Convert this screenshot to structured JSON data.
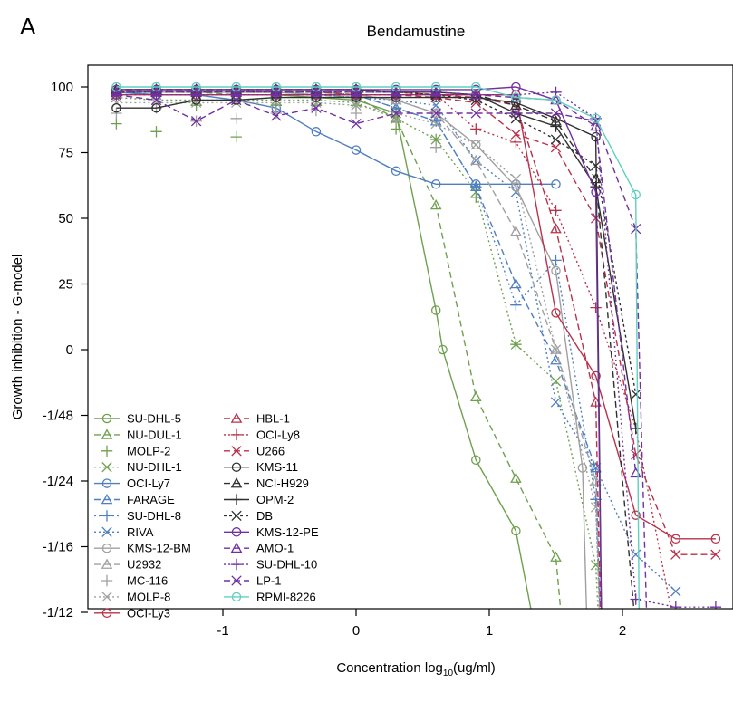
{
  "panel_label": "A",
  "chart_data": {
    "type": "line",
    "title": "Bendamustine",
    "xlabel_main": "Concentration log",
    "xlabel_sub": "10",
    "xlabel_unit": "(ug/ml)",
    "ylabel": "Growth inhibition - G-model",
    "xlim": [
      -2.0,
      2.8
    ],
    "ylim": [
      -1.3,
      1.12
    ],
    "x_ticks": [
      -1,
      0,
      1,
      2
    ],
    "x_tick_labels": [
      "-1",
      "0",
      "1",
      "2"
    ],
    "y_ticks": [
      1.0,
      0.75,
      0.5,
      0.25,
      0,
      -0.25,
      -0.5,
      -0.75,
      -1.0,
      -1.25
    ],
    "y_tick_labels": [
      "100",
      "75",
      "50",
      "25",
      "0",
      "-1/48",
      "-1/24",
      "-1/16",
      "-1/12"
    ],
    "y_tick_values": [
      1.0,
      0.75,
      0.5,
      0.25,
      0,
      -0.25,
      -0.5,
      -0.75,
      -1.0
    ],
    "grid": false,
    "legend_position": "bottom-left",
    "series": [
      {
        "name": "SU-DHL-5",
        "color": "#6fa04f",
        "dash": "",
        "marker": "circle",
        "x": [
          -1.8,
          -1.5,
          -1.2,
          -0.9,
          -0.6,
          -0.3,
          0.0,
          0.3,
          0.6,
          0.65,
          0.9,
          1.2,
          1.45
        ],
        "y": [
          0.98,
          0.97,
          0.97,
          0.97,
          0.97,
          0.96,
          0.95,
          0.9,
          0.15,
          0.0,
          -0.42,
          -0.69,
          -1.35
        ]
      },
      {
        "name": "NU-DUL-1",
        "color": "#6fa04f",
        "dash": "7,4",
        "marker": "triangle",
        "x": [
          -1.8,
          -1.5,
          -1.2,
          -0.9,
          -0.6,
          -0.3,
          0.0,
          0.3,
          0.6,
          0.9,
          1.2,
          1.5,
          1.6
        ],
        "y": [
          0.99,
          0.98,
          0.98,
          0.97,
          0.97,
          0.97,
          0.96,
          0.88,
          0.55,
          -0.18,
          -0.49,
          -0.79,
          -1.35
        ]
      },
      {
        "name": "MOLP-2",
        "color": "#6fa04f",
        "dash": "",
        "marker": "plus",
        "nolines": true,
        "x": [
          -1.8,
          -1.5,
          -1.2,
          -0.9,
          -0.6,
          -0.3,
          0.0,
          0.3,
          0.6,
          0.9,
          1.2
        ],
        "y": [
          0.86,
          0.83,
          0.93,
          0.81,
          0.93,
          0.93,
          0.93,
          0.84,
          0.8,
          0.58,
          0.02
        ]
      },
      {
        "name": "NU-DHL-1",
        "color": "#6fa04f",
        "dash": "2,3",
        "marker": "x",
        "x": [
          -1.8,
          -1.5,
          -1.2,
          -0.9,
          -0.6,
          -0.3,
          0.0,
          0.3,
          0.6,
          0.9,
          1.2,
          1.5,
          1.8,
          1.85
        ],
        "y": [
          0.96,
          0.95,
          0.95,
          0.95,
          0.95,
          0.95,
          0.94,
          0.88,
          0.8,
          0.6,
          0.02,
          -0.12,
          -0.82,
          -1.35
        ]
      },
      {
        "name": "OCI-Ly7",
        "color": "#4f7fbf",
        "dash": "",
        "marker": "circle",
        "x": [
          -1.8,
          -1.5,
          -1.2,
          -0.9,
          -0.6,
          -0.3,
          0.0,
          0.3,
          0.6,
          0.9,
          1.2,
          1.5
        ],
        "y": [
          0.98,
          0.97,
          0.97,
          0.95,
          0.92,
          0.83,
          0.76,
          0.68,
          0.63,
          0.63,
          0.63,
          0.63
        ]
      },
      {
        "name": "FARAGE",
        "color": "#4f7fbf",
        "dash": "7,4",
        "marker": "triangle",
        "x": [
          -1.8,
          -1.5,
          -1.2,
          -0.9,
          -0.6,
          -0.3,
          0.0,
          0.3,
          0.6,
          0.9,
          1.2,
          1.5,
          1.8,
          1.85
        ],
        "y": [
          0.99,
          0.98,
          0.98,
          0.98,
          0.98,
          0.97,
          0.97,
          0.92,
          0.87,
          0.62,
          0.25,
          -0.04,
          -0.45,
          -1.35
        ]
      },
      {
        "name": "SU-DHL-8",
        "color": "#4f7fbf",
        "dash": "2,3",
        "marker": "plus",
        "x": [
          -1.8,
          -1.5,
          -1.2,
          -0.9,
          -0.6,
          -0.3,
          0.0,
          0.3,
          0.6,
          0.9,
          1.2,
          1.5,
          1.8,
          1.85
        ],
        "y": [
          0.99,
          0.99,
          0.99,
          0.99,
          0.98,
          0.98,
          0.97,
          0.92,
          0.87,
          0.62,
          0.17,
          0.34,
          -0.57,
          -1.35
        ]
      },
      {
        "name": "RIVA",
        "color": "#4f7fbf",
        "dash": "2,3",
        "marker": "x",
        "x": [
          -1.8,
          -1.5,
          -1.2,
          -0.9,
          -0.6,
          -0.3,
          0.0,
          0.3,
          0.6,
          0.9,
          1.2,
          1.5,
          1.8,
          2.1,
          2.4
        ],
        "y": [
          0.98,
          0.97,
          0.97,
          0.97,
          0.97,
          0.97,
          0.96,
          0.95,
          0.93,
          0.72,
          0.6,
          -0.2,
          -0.45,
          -0.78,
          -0.92
        ]
      },
      {
        "name": "KMS-12-BM",
        "color": "#a0a0a0",
        "dash": "",
        "marker": "circle",
        "x": [
          -1.8,
          -1.5,
          -1.2,
          -0.9,
          -0.6,
          -0.3,
          0.0,
          0.3,
          0.6,
          0.9,
          1.2,
          1.5,
          1.7,
          1.75
        ],
        "y": [
          0.98,
          0.98,
          0.98,
          0.98,
          0.98,
          0.97,
          0.97,
          0.95,
          0.9,
          0.78,
          0.62,
          0.3,
          -0.45,
          -1.35
        ]
      },
      {
        "name": "U2932",
        "color": "#a0a0a0",
        "dash": "7,4",
        "marker": "triangle",
        "x": [
          -1.8,
          -1.5,
          -1.2,
          -0.9,
          -0.6,
          -0.3,
          0.0,
          0.3,
          0.6,
          0.9,
          1.2,
          1.5,
          1.8,
          1.85
        ],
        "y": [
          0.99,
          0.99,
          0.99,
          0.98,
          0.98,
          0.98,
          0.97,
          0.95,
          0.9,
          0.72,
          0.45,
          0.0,
          -0.5,
          -1.35
        ]
      },
      {
        "name": "MC-116",
        "color": "#a0a0a0",
        "dash": "",
        "marker": "plus",
        "nolines": true,
        "x": [
          -1.8,
          -1.5,
          -1.2,
          -0.9,
          -0.6,
          -0.3,
          0.0,
          0.3,
          0.6
        ],
        "y": [
          0.9,
          0.92,
          0.87,
          0.88,
          0.9,
          0.91,
          0.9,
          0.87,
          0.77
        ]
      },
      {
        "name": "MOLP-8",
        "color": "#a0a0a0",
        "dash": "2,3",
        "marker": "x",
        "x": [
          -1.8,
          -1.5,
          -1.2,
          -0.9,
          -0.6,
          -0.3,
          0.0,
          0.3,
          0.6,
          0.9,
          1.2,
          1.5,
          1.8,
          1.85
        ],
        "y": [
          0.94,
          0.94,
          0.94,
          0.94,
          0.94,
          0.94,
          0.93,
          0.9,
          0.86,
          0.78,
          0.65,
          0.0,
          -0.6,
          -1.35
        ]
      },
      {
        "name": "OCI-Ly3",
        "color": "#b8324b",
        "dash": "",
        "marker": "circle",
        "x": [
          -1.8,
          -1.5,
          -1.2,
          -0.9,
          -0.6,
          -0.3,
          0.0,
          0.3,
          0.6,
          0.9,
          1.2,
          1.5,
          1.8,
          2.1,
          2.4,
          2.7
        ],
        "y": [
          0.97,
          0.97,
          0.97,
          0.97,
          0.97,
          0.97,
          0.97,
          0.97,
          0.97,
          0.97,
          0.97,
          0.14,
          -0.1,
          -0.63,
          -0.72,
          -0.72
        ]
      },
      {
        "name": "HBL-1",
        "color": "#b8324b",
        "dash": "7,4",
        "marker": "triangle",
        "x": [
          -1.8,
          -1.5,
          -1.2,
          -0.9,
          -0.6,
          -0.3,
          0.0,
          0.3,
          0.6,
          0.9,
          1.2,
          1.5,
          1.8,
          1.85
        ],
        "y": [
          0.99,
          0.99,
          0.99,
          0.99,
          0.99,
          0.99,
          0.99,
          0.98,
          0.97,
          0.96,
          0.93,
          0.46,
          -0.2,
          -1.35
        ]
      },
      {
        "name": "OCI-Ly8",
        "color": "#b8324b",
        "dash": "2,3",
        "marker": "plus",
        "x": [
          -1.8,
          -1.5,
          -1.2,
          -0.9,
          -0.6,
          -0.3,
          0.0,
          0.3,
          0.6,
          0.9,
          1.2,
          1.5,
          1.8,
          2.1,
          2.4
        ],
        "y": [
          0.99,
          0.99,
          0.99,
          0.99,
          0.99,
          0.99,
          0.99,
          0.98,
          0.97,
          0.84,
          0.79,
          0.53,
          0.16,
          -0.3,
          -1.08
        ]
      },
      {
        "name": "U266",
        "color": "#b8324b",
        "dash": "7,4",
        "marker": "x",
        "x": [
          -1.8,
          -1.5,
          -1.2,
          -0.9,
          -0.6,
          -0.3,
          0.0,
          0.3,
          0.6,
          0.9,
          1.2,
          1.5,
          1.8,
          2.1,
          2.4,
          2.7
        ],
        "y": [
          0.98,
          0.98,
          0.98,
          0.98,
          0.98,
          0.98,
          0.97,
          0.97,
          0.96,
          0.94,
          0.82,
          0.77,
          0.5,
          -0.4,
          -0.78,
          -0.78
        ]
      },
      {
        "name": "KMS-11",
        "color": "#303030",
        "dash": "",
        "marker": "circle",
        "x": [
          -1.8,
          -1.5,
          -1.2,
          -0.9,
          -0.6,
          -0.3,
          0.0,
          0.3,
          0.6,
          0.9,
          1.2,
          1.5,
          1.8,
          1.85
        ],
        "y": [
          0.92,
          0.92,
          0.95,
          0.95,
          0.96,
          0.96,
          0.96,
          0.96,
          0.96,
          0.96,
          0.94,
          0.88,
          0.81,
          -1.35
        ]
      },
      {
        "name": "NCI-H929",
        "color": "#303030",
        "dash": "7,4",
        "marker": "triangle",
        "x": [
          -1.8,
          -1.5,
          -1.2,
          -0.9,
          -0.6,
          -0.3,
          0.0,
          0.3,
          0.6,
          0.9,
          1.2,
          1.5,
          1.8,
          2.1,
          2.15
        ],
        "y": [
          0.99,
          0.99,
          0.99,
          0.99,
          0.99,
          0.99,
          0.99,
          0.98,
          0.98,
          0.97,
          0.93,
          0.87,
          0.65,
          -1.07,
          -1.35
        ]
      },
      {
        "name": "OPM-2",
        "color": "#303030",
        "dash": "",
        "marker": "plus",
        "x": [
          -1.8,
          -1.5,
          -1.2,
          -0.9,
          -0.6,
          -0.3,
          0.0,
          0.3,
          0.6,
          0.9,
          1.2,
          1.5,
          1.8,
          2.1
        ],
        "y": [
          0.99,
          0.99,
          0.99,
          0.99,
          0.99,
          0.99,
          0.99,
          0.98,
          0.98,
          0.97,
          0.9,
          0.85,
          0.62,
          -0.3
        ]
      },
      {
        "name": "DB",
        "color": "#303030",
        "dash": "3,3",
        "marker": "x",
        "x": [
          -1.8,
          -1.5,
          -1.2,
          -0.9,
          -0.6,
          -0.3,
          0.0,
          0.3,
          0.6,
          0.9,
          1.2,
          1.5,
          1.8,
          2.1
        ],
        "y": [
          0.98,
          0.98,
          0.98,
          0.98,
          0.98,
          0.98,
          0.98,
          0.98,
          0.97,
          0.95,
          0.88,
          0.8,
          0.7,
          -0.17
        ]
      },
      {
        "name": "KMS-12-PE",
        "color": "#7030a0",
        "dash": "",
        "marker": "circle",
        "x": [
          -1.8,
          -1.5,
          -1.2,
          -0.9,
          -0.6,
          -0.3,
          0.0,
          0.3,
          0.6,
          0.9,
          1.2,
          1.5,
          1.8,
          1.85
        ],
        "y": [
          0.99,
          0.99,
          0.99,
          0.99,
          0.99,
          0.99,
          0.99,
          0.99,
          0.99,
          0.99,
          1.0,
          0.95,
          0.6,
          -1.35
        ]
      },
      {
        "name": "AMO-1",
        "color": "#7030a0",
        "dash": "7,4",
        "marker": "triangle",
        "x": [
          -1.8,
          -1.5,
          -1.2,
          -0.9,
          -0.6,
          -0.3,
          0.0,
          0.3,
          0.6,
          0.9,
          1.2,
          1.5,
          1.8,
          2.1
        ],
        "y": [
          0.98,
          0.98,
          0.98,
          0.98,
          0.98,
          0.98,
          0.98,
          0.98,
          0.98,
          0.97,
          0.96,
          0.95,
          0.85,
          -0.47
        ]
      },
      {
        "name": "SU-DHL-10",
        "color": "#7030a0",
        "dash": "2,3",
        "marker": "plus",
        "x": [
          -1.8,
          -1.5,
          -1.2,
          -0.9,
          -0.6,
          -0.3,
          0.0,
          0.3,
          0.6,
          0.9,
          1.2,
          1.5,
          1.8,
          2.1,
          2.4,
          2.7
        ],
        "y": [
          0.97,
          0.97,
          0.97,
          0.97,
          0.97,
          0.97,
          0.97,
          0.97,
          0.97,
          0.97,
          0.97,
          0.98,
          0.88,
          -0.95,
          -0.98,
          -0.98
        ]
      },
      {
        "name": "LP-1",
        "color": "#7030a0",
        "dash": "7,4",
        "marker": "x",
        "x": [
          -1.8,
          -1.5,
          -1.2,
          -0.9,
          -0.6,
          -0.3,
          0.0,
          0.3,
          0.6,
          0.9,
          1.2,
          1.5,
          1.8,
          2.1,
          2.2
        ],
        "y": [
          0.97,
          0.95,
          0.87,
          0.95,
          0.89,
          0.92,
          0.86,
          0.9,
          0.9,
          0.9,
          0.9,
          0.9,
          0.87,
          0.46,
          -1.35
        ]
      },
      {
        "name": "RPMI-8226",
        "color": "#5fd0bf",
        "dash": "",
        "marker": "circle",
        "x": [
          -1.8,
          -1.5,
          -1.2,
          -0.9,
          -0.6,
          -0.3,
          0.0,
          0.3,
          0.6,
          0.9,
          1.2,
          1.5,
          1.8,
          2.1,
          2.13
        ],
        "y": [
          1.0,
          1.0,
          1.0,
          1.0,
          1.0,
          1.0,
          1.0,
          1.0,
          1.0,
          1.0,
          0.96,
          0.95,
          0.88,
          0.59,
          -1.35
        ]
      }
    ]
  }
}
